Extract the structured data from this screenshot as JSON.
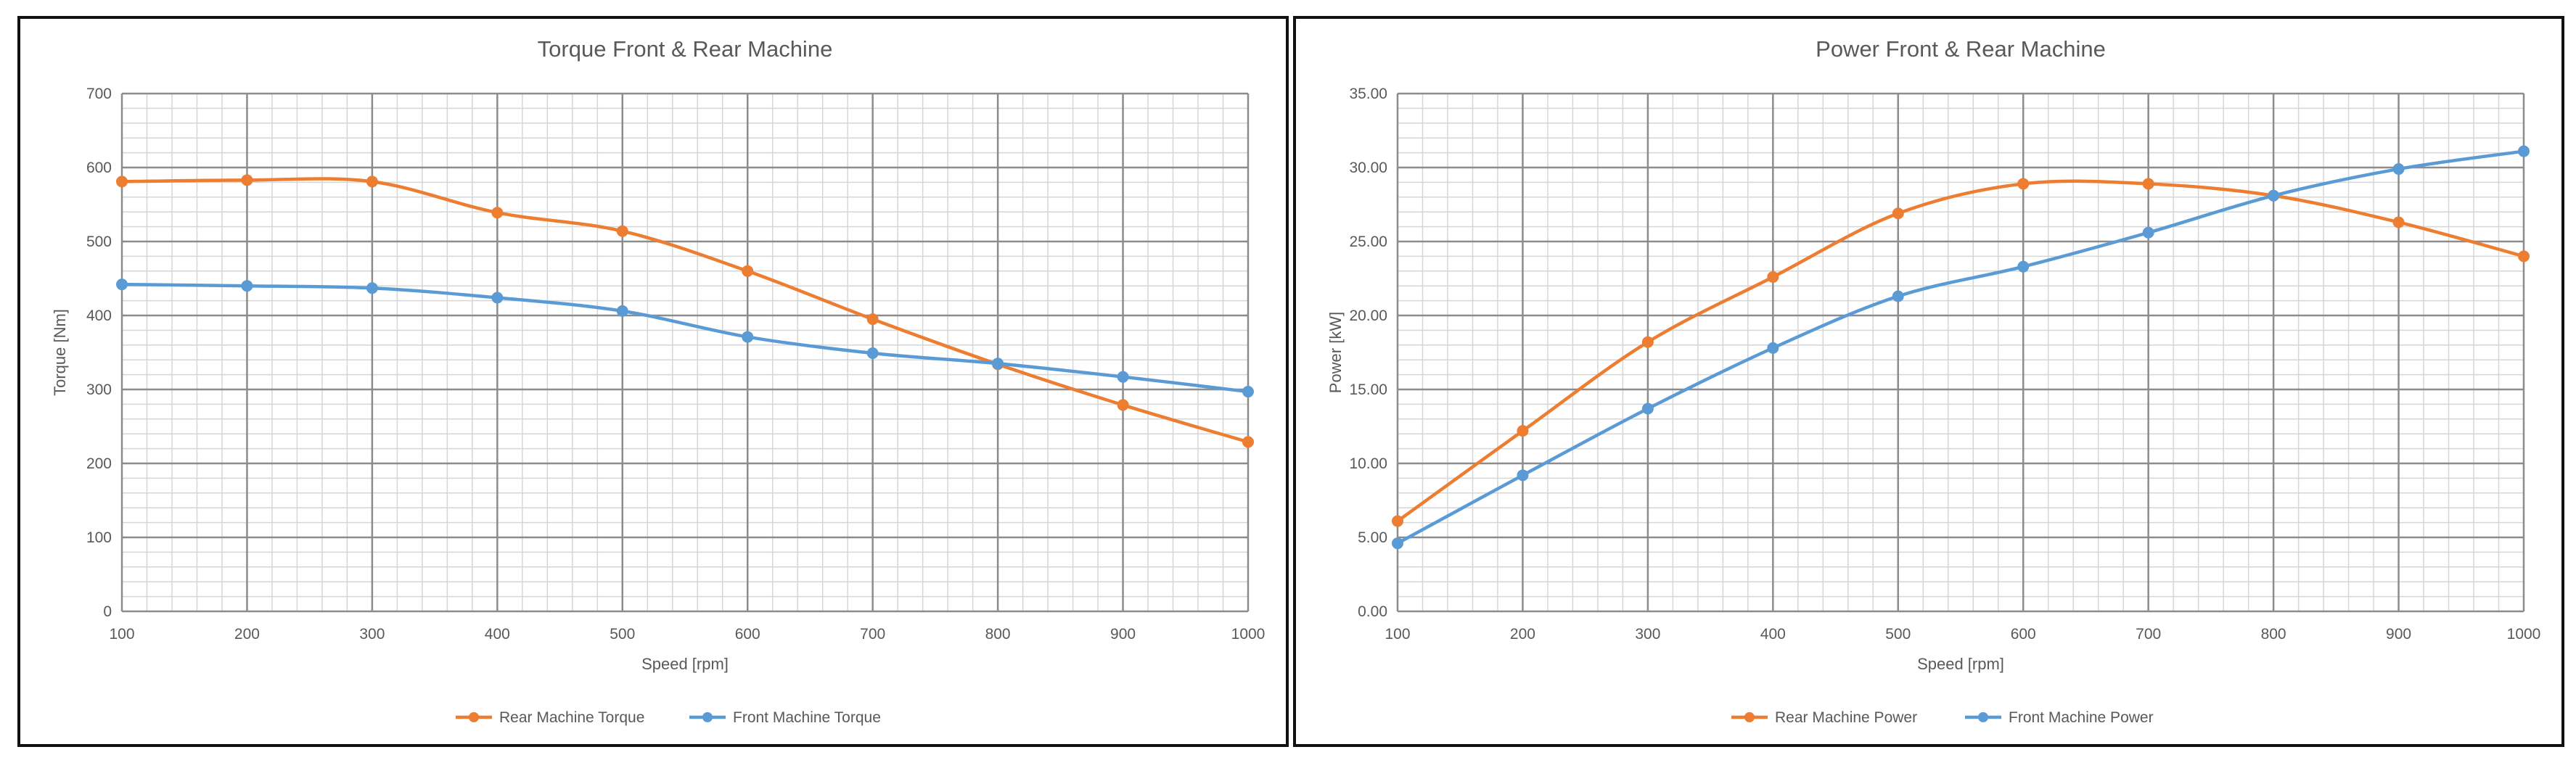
{
  "chart_data": [
    {
      "type": "line",
      "title": "Torque Front & Rear Machine",
      "xlabel": "Speed [rpm]",
      "ylabel": "Torque [Nm]",
      "x": [
        100,
        200,
        300,
        400,
        500,
        600,
        700,
        800,
        900,
        1000
      ],
      "xlim": [
        100,
        1000
      ],
      "ylim": [
        0,
        700
      ],
      "x_ticks": [
        "100",
        "200",
        "300",
        "400",
        "500",
        "600",
        "700",
        "800",
        "900",
        "1000"
      ],
      "y_ticks": [
        "0",
        "100",
        "200",
        "300",
        "400",
        "500",
        "600",
        "700"
      ],
      "grid": true,
      "legend_position": "bottom",
      "series": [
        {
          "name": "Rear Machine Torque",
          "color": "#ED7D31",
          "values": [
            581,
            583,
            581,
            539,
            514,
            460,
            395,
            334,
            279,
            229
          ]
        },
        {
          "name": "Front Machine Torque",
          "color": "#5B9BD5",
          "values": [
            442,
            440,
            437,
            424,
            406,
            371,
            349,
            335,
            317,
            297
          ]
        }
      ]
    },
    {
      "type": "line",
      "title": "Power Front & Rear Machine",
      "xlabel": "Speed [rpm]",
      "ylabel": "Power [kW]",
      "x": [
        100,
        200,
        300,
        400,
        500,
        600,
        700,
        800,
        900,
        1000
      ],
      "xlim": [
        100,
        1000
      ],
      "ylim": [
        0,
        35
      ],
      "x_ticks": [
        "100",
        "200",
        "300",
        "400",
        "500",
        "600",
        "700",
        "800",
        "900",
        "1000"
      ],
      "y_ticks": [
        "0.00",
        "5.00",
        "10.00",
        "15.00",
        "20.00",
        "25.00",
        "30.00",
        "35.00"
      ],
      "grid": true,
      "legend_position": "bottom",
      "series": [
        {
          "name": "Rear Machine Power",
          "color": "#ED7D31",
          "values": [
            6.1,
            12.2,
            18.2,
            22.6,
            26.9,
            28.9,
            28.9,
            28.1,
            26.3,
            24.0
          ]
        },
        {
          "name": "Front Machine Power",
          "color": "#5B9BD5",
          "values": [
            4.6,
            9.2,
            13.7,
            17.8,
            21.3,
            23.3,
            25.6,
            28.1,
            29.9,
            31.1
          ]
        }
      ]
    }
  ]
}
